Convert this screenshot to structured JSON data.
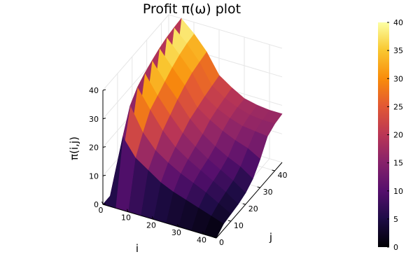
{
  "chart_data": {
    "type": "surface",
    "title": "Profit π(ω) plot",
    "xlabel": "i",
    "ylabel": "j",
    "zlabel": "π(i,j)",
    "xlim": [
      0,
      45
    ],
    "ylim": [
      0,
      45
    ],
    "zlim": [
      0,
      40
    ],
    "x_ticks": [
      "0",
      "10",
      "20",
      "30",
      "40"
    ],
    "y_ticks": [
      "0",
      "10",
      "20",
      "30",
      "40"
    ],
    "z_ticks": [
      "0",
      "10",
      "20",
      "30",
      "40"
    ],
    "colorbar": {
      "colormap": "inferno",
      "range": [
        0,
        40
      ],
      "ticks": [
        "0",
        "5",
        "10",
        "15",
        "20",
        "25",
        "30",
        "35",
        "40"
      ]
    },
    "grid": true,
    "legend": "none",
    "x": [
      0,
      5,
      10,
      15,
      20,
      25,
      30,
      35,
      40,
      45
    ],
    "y": [
      0,
      5,
      10,
      15,
      20,
      25,
      30,
      35,
      40,
      45
    ],
    "z": [
      [
        0,
        0,
        0,
        0,
        0,
        0,
        0,
        0,
        0,
        0
      ],
      [
        0,
        22,
        30,
        33.5,
        35.5,
        37,
        38.3,
        39.2,
        39.7,
        40
      ],
      [
        0,
        16,
        22,
        27,
        29,
        31,
        33,
        34.5,
        35.5,
        36
      ],
      [
        0,
        13,
        17,
        21,
        23.5,
        26,
        28,
        29.5,
        30.3,
        31
      ],
      [
        0,
        10,
        14,
        16.5,
        18.5,
        20.5,
        21.5,
        22.5,
        23.3,
        24
      ],
      [
        0,
        8,
        11.5,
        13.5,
        15,
        16.5,
        18.5,
        19.5,
        20.3,
        21
      ],
      [
        0,
        6.5,
        9.5,
        11,
        12,
        13.5,
        16,
        17.5,
        18.3,
        18.5
      ],
      [
        0,
        5,
        7.5,
        8.5,
        9.5,
        11,
        14,
        16,
        17,
        17.5
      ],
      [
        0,
        3.5,
        5,
        6,
        7,
        9,
        12.5,
        15.5,
        16.5,
        17
      ],
      [
        0,
        2,
        2.5,
        3,
        4,
        6,
        10,
        15,
        16.5,
        17
      ]
    ]
  }
}
